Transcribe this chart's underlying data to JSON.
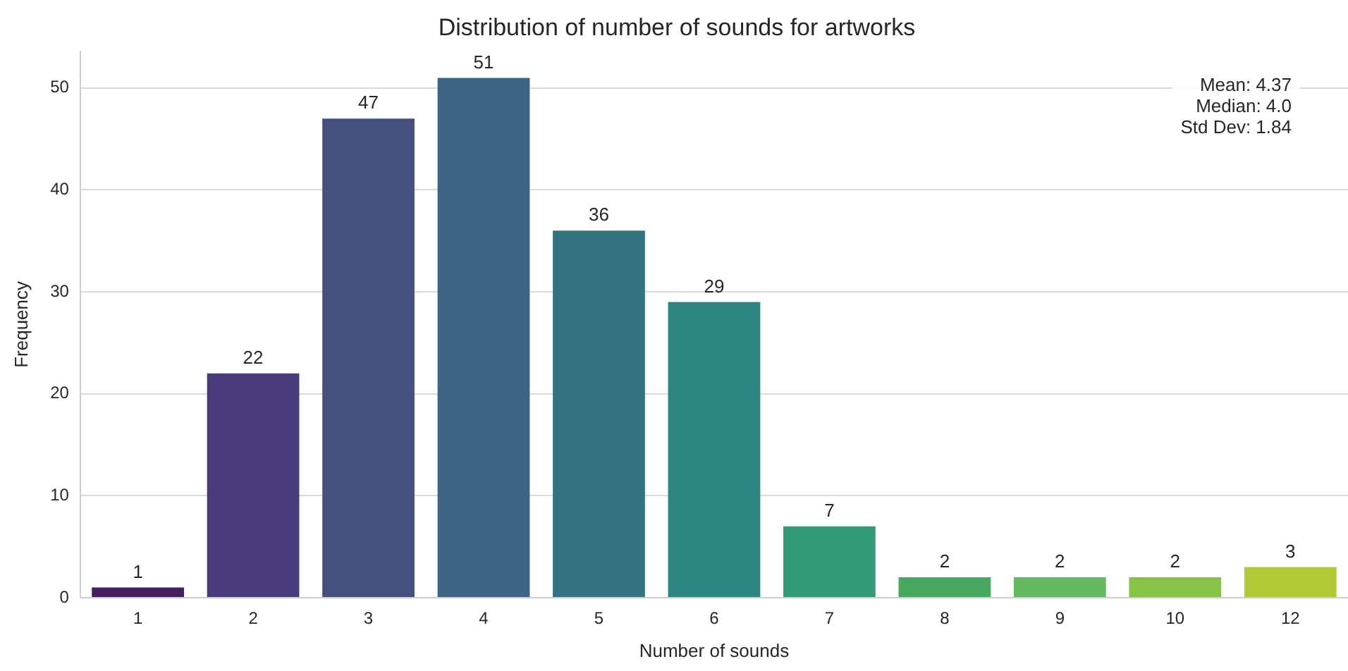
{
  "chart_data": {
    "type": "bar",
    "title": "Distribution of number of sounds for artworks",
    "xlabel": "Number of sounds",
    "ylabel": "Frequency",
    "categories": [
      "1",
      "2",
      "3",
      "4",
      "5",
      "6",
      "7",
      "8",
      "9",
      "10",
      "12"
    ],
    "values": [
      1,
      22,
      47,
      51,
      36,
      29,
      7,
      2,
      2,
      2,
      3
    ],
    "colors": [
      "#471e5f",
      "#4a3b7a",
      "#45507e",
      "#3d6482",
      "#33737f",
      "#2c867f",
      "#339a77",
      "#48a85f",
      "#63b961",
      "#87c445",
      "#b0c935"
    ],
    "ylim": [
      0,
      53.6
    ],
    "yticks": [
      0,
      10,
      20,
      30,
      40,
      50
    ],
    "grid": "y",
    "data_labels": true,
    "annotations": [
      "Mean: 4.37",
      "Median: 4.0",
      "Std Dev: 1.84"
    ]
  }
}
